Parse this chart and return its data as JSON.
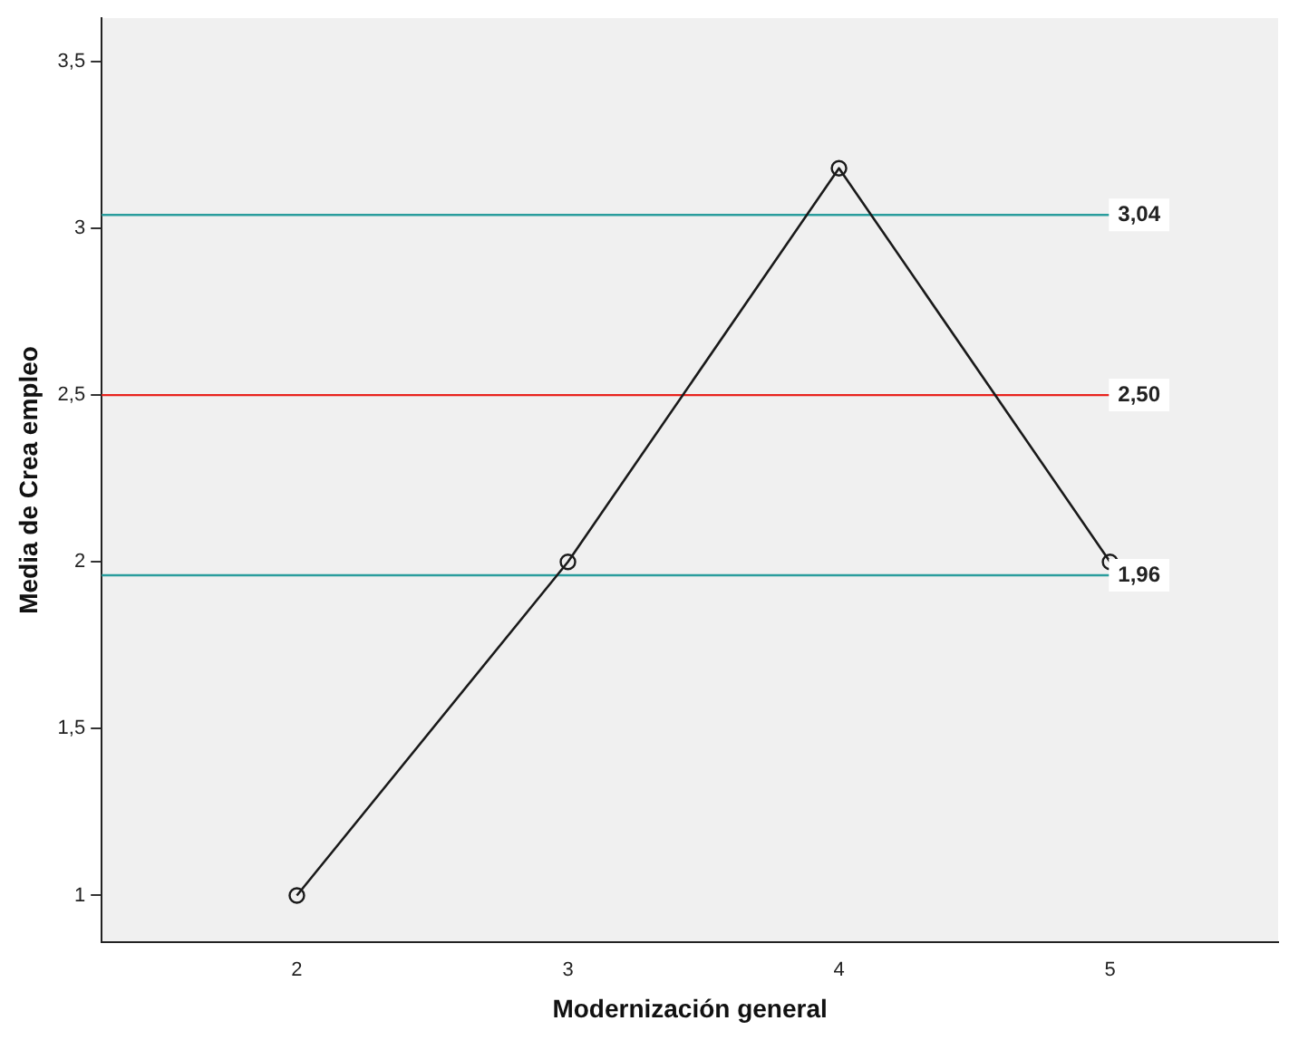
{
  "chart_data": {
    "type": "line",
    "xlabel": "Modernización general",
    "ylabel": "Media de Crea empleo",
    "x": [
      2,
      3,
      4,
      5
    ],
    "series": [
      {
        "color": "#1a1a1a",
        "values": [
          1,
          2,
          3.18,
          2
        ]
      }
    ],
    "marker": "circle",
    "line_style": "solid",
    "grid": false,
    "legend": false,
    "xlim": [
      1.28,
      5.62
    ],
    "xticks": [
      2,
      3,
      4,
      5
    ],
    "ylim": [
      0.86,
      3.63
    ],
    "yticks": [
      {
        "value": 1,
        "label": "1"
      },
      {
        "value": 1.5,
        "label": "1,5"
      },
      {
        "value": 2,
        "label": "2"
      },
      {
        "value": 2.5,
        "label": "2,5"
      },
      {
        "value": 3,
        "label": "3"
      },
      {
        "value": 3.5,
        "label": "3,5"
      }
    ],
    "ref_lines": [
      {
        "axis": "y",
        "value": 3.04,
        "label": "3,04",
        "color": "#2a9d9d"
      },
      {
        "axis": "y",
        "value": 2.5,
        "label": "2,50",
        "color": "#e8231e"
      },
      {
        "axis": "y",
        "value": 1.96,
        "label": "1,96",
        "color": "#2a9d9d"
      }
    ]
  }
}
